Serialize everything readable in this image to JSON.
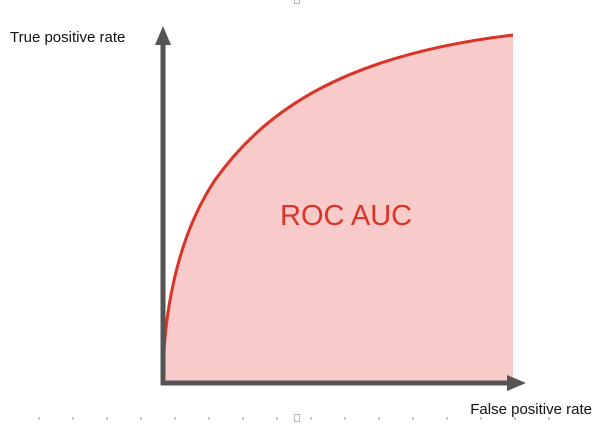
{
  "diagram": {
    "y_axis_label": "True positive rate",
    "x_axis_label": "False positive rate",
    "area_label": "ROC AUC"
  },
  "colors": {
    "curve": "#d93425",
    "area_fill": "#f8caca",
    "axis": "#545454",
    "area_label": "#d93425"
  },
  "curve_shape": "concave-rising",
  "selection_handles": [
    "top-center",
    "bottom-center"
  ]
}
